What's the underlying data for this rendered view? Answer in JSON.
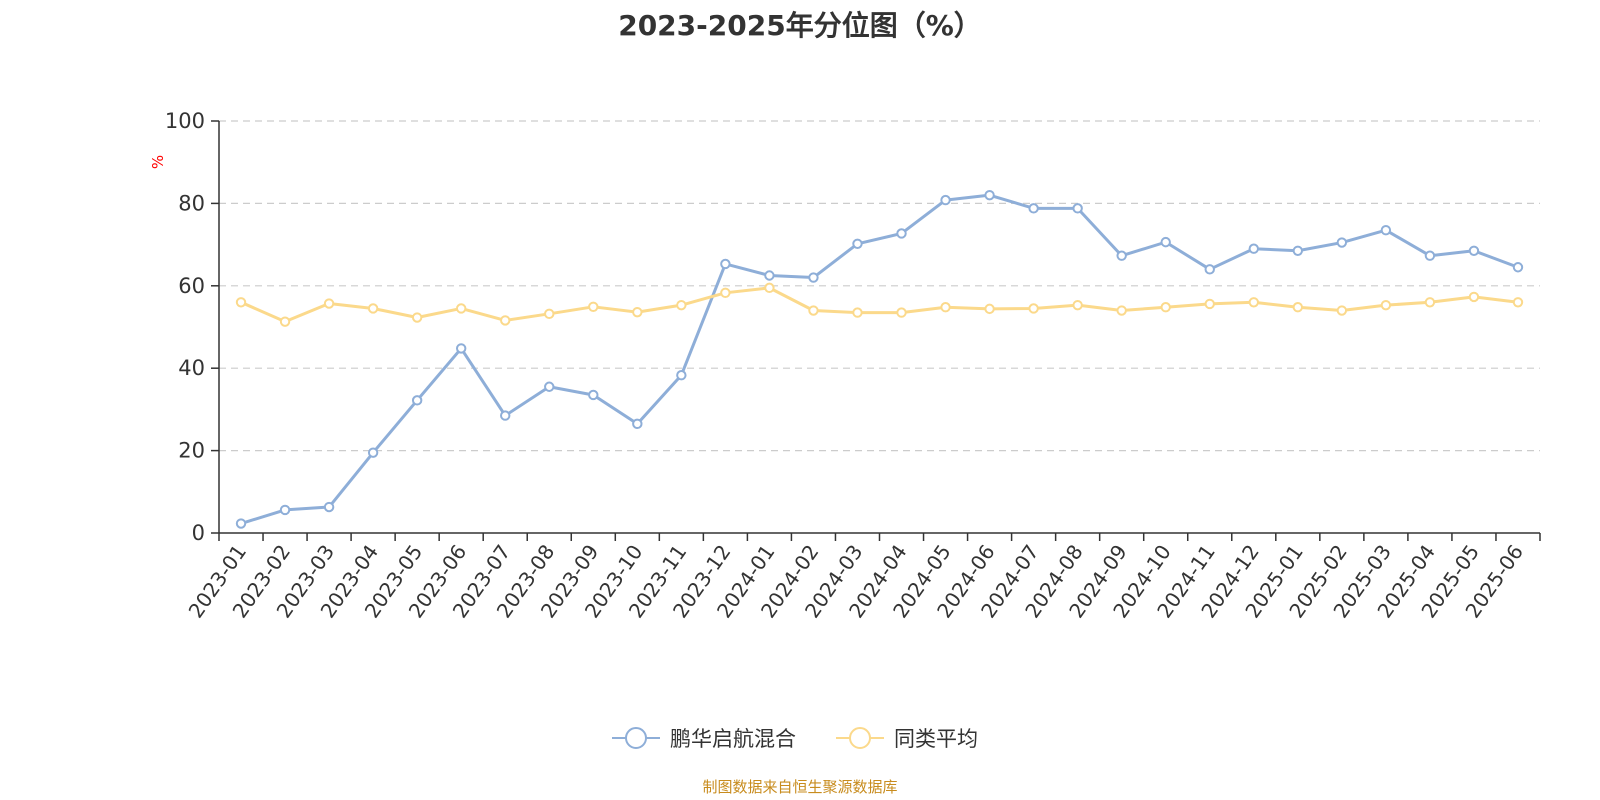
{
  "chart_data": {
    "type": "line",
    "title": "2023-2025年分位图（%）",
    "unit_label": "%",
    "source_note": "制图数据来自恒生聚源数据库",
    "ylim": [
      0,
      100
    ],
    "yticks": [
      0,
      20,
      40,
      60,
      80,
      100
    ],
    "grid": true,
    "legend_position": "bottom-center",
    "x": [
      "2023-01",
      "2023-02",
      "2023-03",
      "2023-04",
      "2023-05",
      "2023-06",
      "2023-07",
      "2023-08",
      "2023-09",
      "2023-10",
      "2023-11",
      "2023-12",
      "2024-01",
      "2024-02",
      "2024-03",
      "2024-04",
      "2024-05",
      "2024-06",
      "2024-07",
      "2024-08",
      "2024-09",
      "2024-10",
      "2024-11",
      "2024-12",
      "2025-01",
      "2025-02",
      "2025-03",
      "2025-04",
      "2025-05",
      "2025-06"
    ],
    "series": [
      {
        "name": "鹏华启航混合",
        "color": "#8eaed8",
        "values": [
          2.3,
          5.6,
          6.3,
          19.5,
          32.2,
          44.8,
          28.5,
          35.5,
          33.5,
          26.5,
          38.3,
          65.3,
          62.5,
          62.0,
          70.2,
          72.7,
          80.8,
          82.0,
          78.8,
          78.8,
          67.3,
          70.6,
          64.0,
          69.0,
          68.5,
          70.5,
          73.5,
          67.3,
          68.5,
          64.5
        ]
      },
      {
        "name": "同类平均",
        "color": "#fbd98b",
        "values": [
          56.0,
          51.3,
          55.7,
          54.5,
          52.3,
          54.5,
          51.6,
          53.2,
          54.9,
          53.6,
          55.3,
          58.3,
          59.5,
          54.0,
          53.5,
          53.5,
          54.8,
          54.4,
          54.5,
          55.3,
          54.0,
          54.8,
          55.6,
          56.0,
          54.8,
          54.0,
          55.3,
          56.0,
          57.3,
          56.0
        ]
      }
    ]
  }
}
